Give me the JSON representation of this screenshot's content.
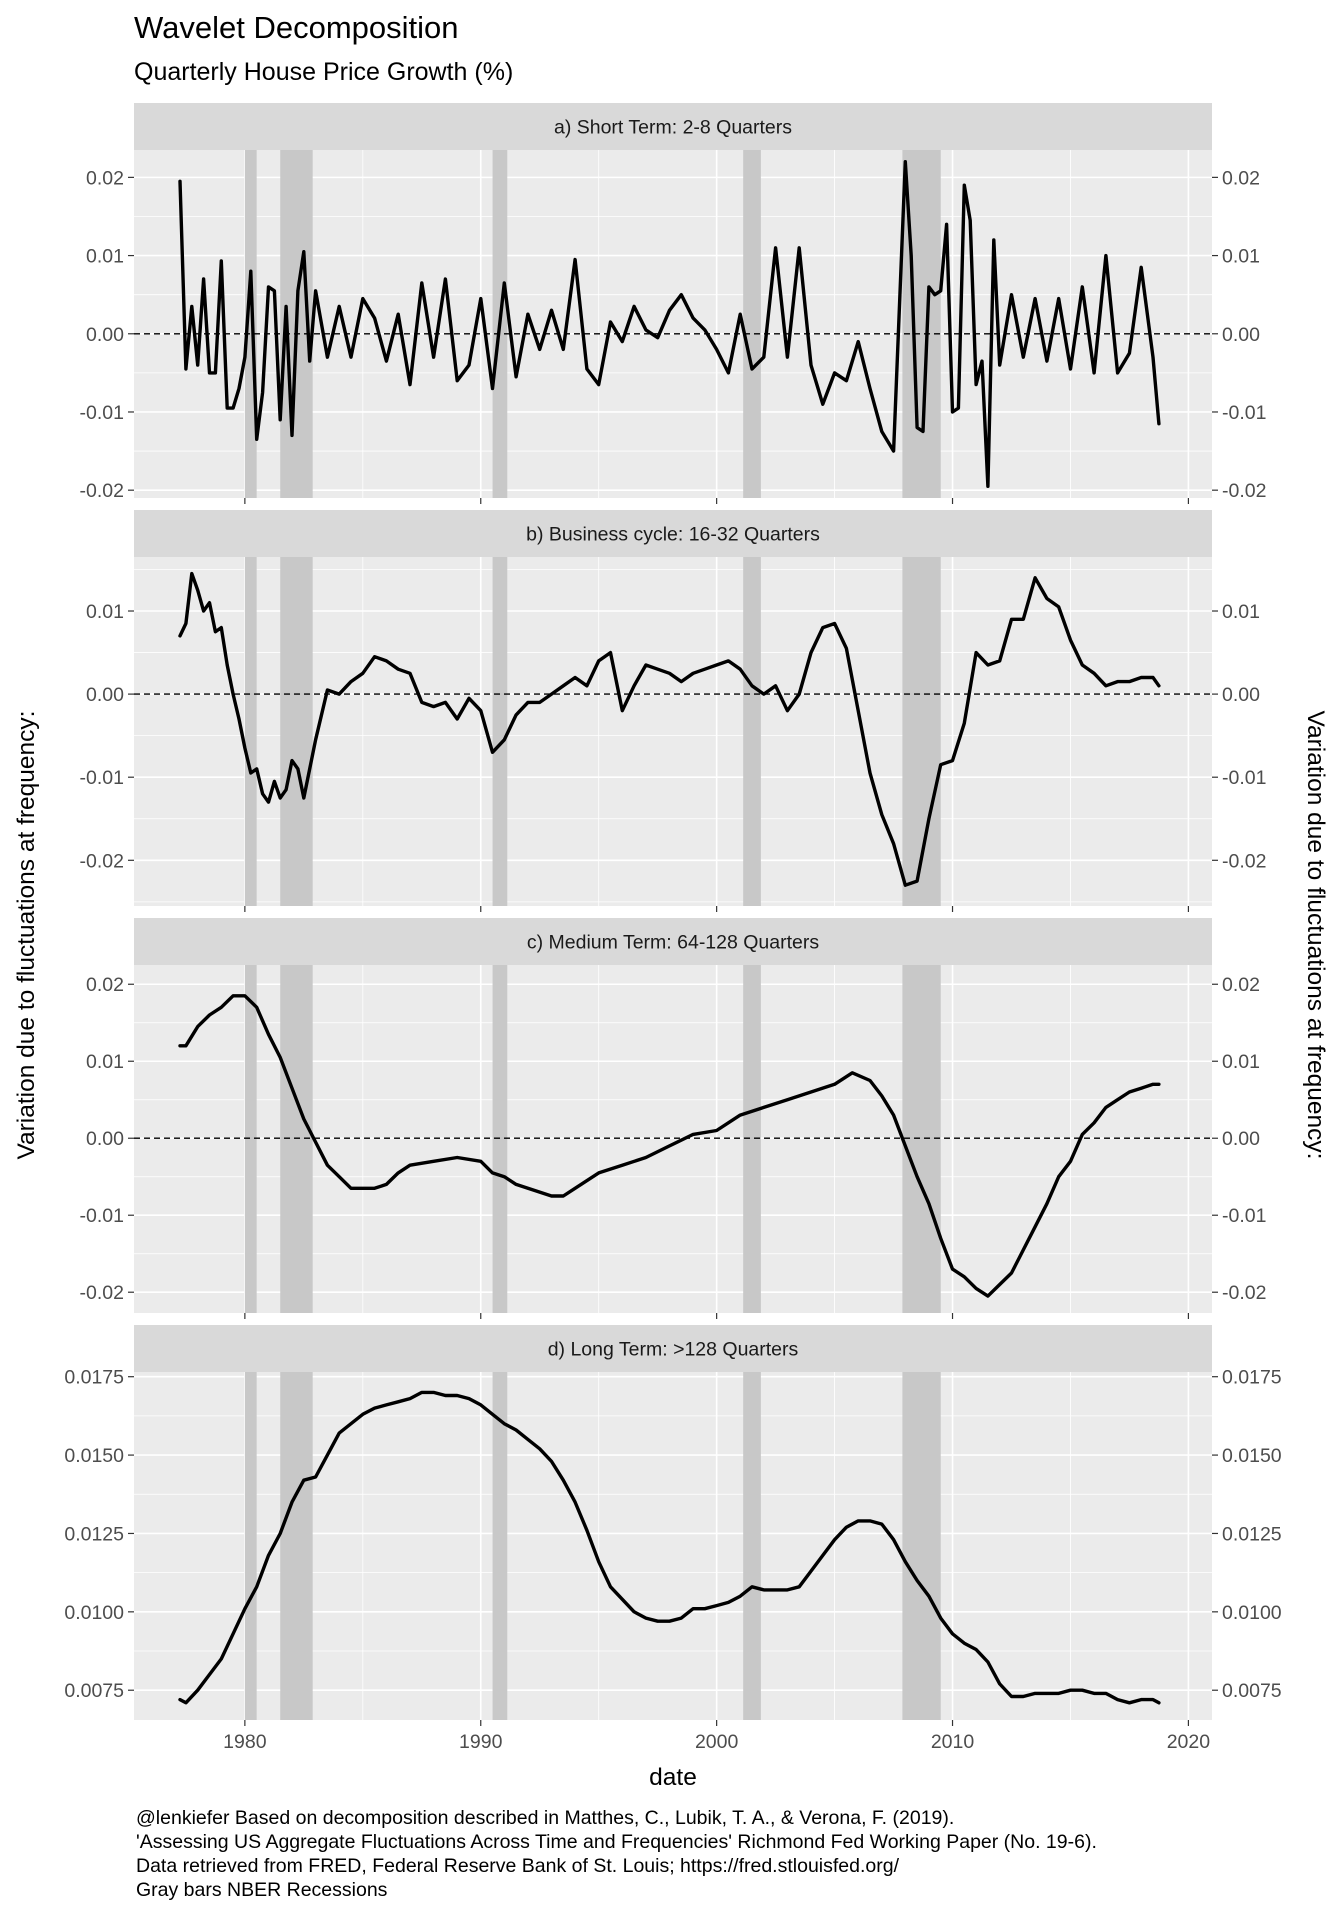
{
  "title": "Wavelet Decomposition",
  "subtitle": "Quarterly House Price Growth (%)",
  "caption": [
    "@lenkiefer Based on decomposition described in Matthes, C., Lubik, T. A., & Verona, F. (2019).",
    "'Assessing US Aggregate Fluctuations Across Time and Frequencies' Richmond Fed Working Paper (No. 19-6).",
    "Data retrieved from FRED, Federal Reserve Bank of St. Louis; https://fred.stlouisfed.org/",
    "Gray bars NBER Recessions"
  ],
  "colors": {
    "panel_background": "#ebebeb",
    "grid": "#ffffff",
    "strip_background": "#d9d9d9",
    "recession_bar": "#c8c8c8",
    "line": "#000000"
  },
  "chart_data": {
    "type": "line",
    "xlabel": "date",
    "ylabel": "Variation due to fluctuations at frequency:",
    "xlim": [
      1975.3,
      2021.0
    ],
    "x_ticks": [
      1980,
      1990,
      2000,
      2010,
      2020
    ],
    "x_tick_labels": [
      "1980",
      "1990",
      "2000",
      "2010",
      "2020"
    ],
    "recessions": [
      [
        1980.0,
        1980.5
      ],
      [
        1981.5,
        1982.875
      ],
      [
        1990.5,
        1991.125
      ],
      [
        2001.125,
        2001.875
      ],
      [
        2007.875,
        2009.5
      ]
    ],
    "reference_line": 0,
    "panels": [
      {
        "title": "a) Short Term: 2-8 Quarters",
        "ylim": [
          -0.021,
          0.0235
        ],
        "y_ticks": [
          -0.02,
          -0.01,
          0.0,
          0.01,
          0.02
        ],
        "y_tick_labels": [
          "-0.02",
          "-0.01",
          "0.00",
          "0.01",
          "0.02"
        ],
        "zero_line": true,
        "x": [
          1977.25,
          1977.5,
          1977.75,
          1978.0,
          1978.25,
          1978.5,
          1978.75,
          1979.0,
          1979.25,
          1979.5,
          1979.75,
          1980.0,
          1980.25,
          1980.5,
          1980.75,
          1981.0,
          1981.25,
          1981.5,
          1981.75,
          1982.0,
          1982.25,
          1982.5,
          1982.75,
          1983.0,
          1983.5,
          1984.0,
          1984.5,
          1985.0,
          1985.5,
          1986.0,
          1986.5,
          1987.0,
          1987.5,
          1988.0,
          1988.5,
          1989.0,
          1989.5,
          1990.0,
          1990.5,
          1991.0,
          1991.5,
          1992.0,
          1992.5,
          1993.0,
          1993.5,
          1994.0,
          1994.5,
          1995.0,
          1995.5,
          1996.0,
          1996.5,
          1997.0,
          1997.5,
          1998.0,
          1998.5,
          1999.0,
          1999.5,
          2000.0,
          2000.5,
          2001.0,
          2001.5,
          2002.0,
          2002.5,
          2003.0,
          2003.5,
          2004.0,
          2004.5,
          2005.0,
          2005.5,
          2006.0,
          2006.5,
          2007.0,
          2007.5,
          2008.0,
          2008.25,
          2008.5,
          2008.75,
          2009.0,
          2009.25,
          2009.5,
          2009.75,
          2010.0,
          2010.25,
          2010.5,
          2010.75,
          2011.0,
          2011.25,
          2011.5,
          2011.75,
          2012.0,
          2012.5,
          2013.0,
          2013.5,
          2014.0,
          2014.5,
          2015.0,
          2015.5,
          2016.0,
          2016.5,
          2017.0,
          2017.5,
          2018.0,
          2018.5,
          2018.75
        ],
        "y": [
          0.0195,
          -0.0045,
          0.0035,
          -0.004,
          0.007,
          -0.005,
          -0.005,
          0.0093,
          -0.0095,
          -0.0095,
          -0.007,
          -0.003,
          0.008,
          -0.0135,
          -0.0075,
          0.006,
          0.0055,
          -0.011,
          0.0035,
          -0.013,
          0.0055,
          0.0105,
          -0.0035,
          0.0055,
          -0.003,
          0.0035,
          -0.003,
          0.0045,
          0.002,
          -0.0035,
          0.0025,
          -0.0065,
          0.0065,
          -0.003,
          0.007,
          -0.006,
          -0.004,
          0.0045,
          -0.007,
          0.0065,
          -0.0055,
          0.0025,
          -0.002,
          0.003,
          -0.002,
          0.0095,
          -0.0045,
          -0.0065,
          0.0015,
          -0.001,
          0.0035,
          0.0005,
          -0.0005,
          0.003,
          0.005,
          0.002,
          0.0005,
          -0.002,
          -0.005,
          0.0025,
          -0.0045,
          -0.003,
          0.011,
          -0.003,
          0.011,
          -0.004,
          -0.009,
          -0.005,
          -0.006,
          -0.001,
          -0.007,
          -0.0125,
          -0.015,
          0.022,
          0.01,
          -0.012,
          -0.0125,
          0.006,
          0.005,
          0.0055,
          0.014,
          -0.01,
          -0.0095,
          0.019,
          0.0145,
          -0.0065,
          -0.0035,
          -0.0195,
          0.012,
          -0.004,
          0.005,
          -0.003,
          0.0045,
          -0.0035,
          0.0045,
          -0.0045,
          0.006,
          -0.005,
          0.01,
          -0.005,
          -0.0025,
          0.0085,
          -0.003,
          -0.0115
        ]
      },
      {
        "title": "b) Business cycle: 16-32 Quarters",
        "ylim": [
          -0.0255,
          0.0165
        ],
        "y_ticks": [
          -0.02,
          -0.01,
          0.0,
          0.01
        ],
        "y_tick_labels": [
          "-0.02",
          "-0.01",
          "0.00",
          "0.01"
        ],
        "zero_line": true,
        "x": [
          1977.25,
          1977.5,
          1977.75,
          1978.0,
          1978.25,
          1978.5,
          1978.75,
          1979.0,
          1979.25,
          1979.5,
          1979.75,
          1980.0,
          1980.25,
          1980.5,
          1980.75,
          1981.0,
          1981.25,
          1981.5,
          1981.75,
          1982.0,
          1982.25,
          1982.5,
          1982.75,
          1983.0,
          1983.5,
          1984.0,
          1984.5,
          1985.0,
          1985.5,
          1986.0,
          1986.5,
          1987.0,
          1987.5,
          1988.0,
          1988.5,
          1989.0,
          1989.5,
          1990.0,
          1990.5,
          1991.0,
          1991.5,
          1992.0,
          1992.5,
          1993.0,
          1993.5,
          1994.0,
          1994.5,
          1995.0,
          1995.5,
          1996.0,
          1996.5,
          1997.0,
          1997.5,
          1998.0,
          1998.5,
          1999.0,
          1999.5,
          2000.0,
          2000.5,
          2001.0,
          2001.5,
          2002.0,
          2002.5,
          2003.0,
          2003.5,
          2004.0,
          2004.5,
          2005.0,
          2005.5,
          2006.0,
          2006.5,
          2007.0,
          2007.5,
          2008.0,
          2008.5,
          2009.0,
          2009.5,
          2010.0,
          2010.5,
          2011.0,
          2011.5,
          2012.0,
          2012.5,
          2013.0,
          2013.5,
          2014.0,
          2014.5,
          2015.0,
          2015.5,
          2016.0,
          2016.5,
          2017.0,
          2017.5,
          2018.0,
          2018.5,
          2018.75
        ],
        "y": [
          0.007,
          0.0085,
          0.0145,
          0.0125,
          0.01,
          0.011,
          0.0075,
          0.008,
          0.0035,
          0.0,
          -0.003,
          -0.0065,
          -0.0095,
          -0.009,
          -0.012,
          -0.013,
          -0.0105,
          -0.0125,
          -0.0115,
          -0.008,
          -0.009,
          -0.0125,
          -0.009,
          -0.0055,
          0.0005,
          0.0,
          0.0015,
          0.0025,
          0.0045,
          0.004,
          0.003,
          0.0025,
          -0.001,
          -0.0015,
          -0.001,
          -0.003,
          -0.0005,
          -0.002,
          -0.007,
          -0.0055,
          -0.0025,
          -0.001,
          -0.001,
          0.0,
          0.001,
          0.002,
          0.001,
          0.004,
          0.005,
          -0.002,
          0.001,
          0.0035,
          0.003,
          0.0025,
          0.0015,
          0.0025,
          0.003,
          0.0035,
          0.004,
          0.003,
          0.001,
          0.0,
          0.001,
          -0.002,
          0.0,
          0.005,
          0.008,
          0.0085,
          0.0055,
          -0.002,
          -0.0095,
          -0.0145,
          -0.018,
          -0.023,
          -0.0225,
          -0.015,
          -0.0085,
          -0.008,
          -0.0035,
          0.005,
          0.0035,
          0.004,
          0.009,
          0.009,
          0.014,
          0.0115,
          0.0105,
          0.0065,
          0.0035,
          0.0025,
          0.001,
          0.0015,
          0.0015,
          0.002,
          0.002,
          0.001
        ]
      },
      {
        "title": "c) Medium Term: 64-128 Quarters",
        "ylim": [
          -0.0227,
          0.0225
        ],
        "y_ticks": [
          -0.02,
          -0.01,
          0.0,
          0.01,
          0.02
        ],
        "y_tick_labels": [
          "-0.02",
          "-0.01",
          "0.00",
          "0.01",
          "0.02"
        ],
        "zero_line": true,
        "x": [
          1977.25,
          1977.5,
          1978.0,
          1978.5,
          1979.0,
          1979.5,
          1980.0,
          1980.5,
          1981.0,
          1981.5,
          1982.0,
          1982.5,
          1983.0,
          1983.5,
          1984.0,
          1984.5,
          1985.0,
          1985.5,
          1986.0,
          1986.5,
          1987.0,
          1988.0,
          1989.0,
          1990.0,
          1990.5,
          1991.0,
          1991.5,
          1992.0,
          1993.0,
          1993.5,
          1994.0,
          1995.0,
          1996.0,
          1997.0,
          1998.0,
          1999.0,
          2000.0,
          2001.0,
          2002.0,
          2003.0,
          2004.0,
          2005.0,
          2005.75,
          2006.5,
          2007.0,
          2007.5,
          2008.0,
          2008.5,
          2009.0,
          2009.5,
          2010.0,
          2010.5,
          2011.0,
          2011.5,
          2012.0,
          2012.5,
          2013.0,
          2013.5,
          2014.0,
          2014.5,
          2015.0,
          2015.5,
          2016.0,
          2016.5,
          2017.0,
          2017.5,
          2018.0,
          2018.5,
          2018.75
        ],
        "y": [
          0.012,
          0.012,
          0.0145,
          0.016,
          0.017,
          0.0185,
          0.0185,
          0.017,
          0.0135,
          0.0105,
          0.0065,
          0.0025,
          -0.0005,
          -0.0035,
          -0.005,
          -0.0065,
          -0.0065,
          -0.0065,
          -0.006,
          -0.0045,
          -0.0035,
          -0.003,
          -0.0025,
          -0.003,
          -0.0045,
          -0.005,
          -0.006,
          -0.0065,
          -0.0075,
          -0.0075,
          -0.0065,
          -0.0045,
          -0.0035,
          -0.0025,
          -0.001,
          0.0005,
          0.001,
          0.003,
          0.004,
          0.005,
          0.006,
          0.007,
          0.0085,
          0.0075,
          0.0055,
          0.003,
          -0.001,
          -0.005,
          -0.0085,
          -0.013,
          -0.017,
          -0.018,
          -0.0195,
          -0.0205,
          -0.019,
          -0.0175,
          -0.0145,
          -0.0115,
          -0.0085,
          -0.005,
          -0.003,
          0.0005,
          0.002,
          0.004,
          0.005,
          0.006,
          0.0065,
          0.007,
          0.007
        ]
      },
      {
        "title": "d) Long Term: >128 Quarters",
        "ylim": [
          0.00655,
          0.01765
        ],
        "y_ticks": [
          0.0075,
          0.01,
          0.0125,
          0.015,
          0.0175
        ],
        "y_tick_labels": [
          "0.0075",
          "0.0100",
          "0.0125",
          "0.0150",
          "0.0175"
        ],
        "zero_line": false,
        "x": [
          1977.25,
          1977.5,
          1978.0,
          1978.5,
          1979.0,
          1979.5,
          1980.0,
          1980.5,
          1981.0,
          1981.5,
          1982.0,
          1982.5,
          1983.0,
          1983.5,
          1984.0,
          1984.5,
          1985.0,
          1985.5,
          1986.0,
          1986.5,
          1987.0,
          1987.5,
          1988.0,
          1988.5,
          1989.0,
          1989.5,
          1990.0,
          1990.5,
          1991.0,
          1991.5,
          1992.0,
          1992.5,
          1993.0,
          1993.5,
          1994.0,
          1994.5,
          1995.0,
          1995.5,
          1996.0,
          1996.5,
          1997.0,
          1997.5,
          1998.0,
          1998.5,
          1999.0,
          1999.5,
          2000.0,
          2000.5,
          2001.0,
          2001.5,
          2002.0,
          2002.5,
          2003.0,
          2003.5,
          2004.0,
          2004.5,
          2005.0,
          2005.5,
          2006.0,
          2006.5,
          2007.0,
          2007.5,
          2008.0,
          2008.5,
          2009.0,
          2009.5,
          2010.0,
          2010.5,
          2011.0,
          2011.5,
          2012.0,
          2012.5,
          2013.0,
          2013.5,
          2014.0,
          2014.5,
          2015.0,
          2015.5,
          2016.0,
          2016.5,
          2017.0,
          2017.5,
          2018.0,
          2018.5,
          2018.75
        ],
        "y": [
          0.0072,
          0.0071,
          0.0075,
          0.008,
          0.0085,
          0.0093,
          0.0101,
          0.0108,
          0.0118,
          0.0125,
          0.0135,
          0.0142,
          0.0143,
          0.015,
          0.0157,
          0.016,
          0.0163,
          0.0165,
          0.0166,
          0.0167,
          0.0168,
          0.017,
          0.017,
          0.0169,
          0.0169,
          0.0168,
          0.0166,
          0.0163,
          0.016,
          0.0158,
          0.0155,
          0.0152,
          0.0148,
          0.0142,
          0.0135,
          0.0126,
          0.0116,
          0.0108,
          0.0104,
          0.01,
          0.0098,
          0.0097,
          0.0097,
          0.0098,
          0.0101,
          0.0101,
          0.0102,
          0.0103,
          0.0105,
          0.0108,
          0.0107,
          0.0107,
          0.0107,
          0.0108,
          0.0113,
          0.0118,
          0.0123,
          0.0127,
          0.0129,
          0.0129,
          0.0128,
          0.0123,
          0.0116,
          0.011,
          0.0105,
          0.0098,
          0.0093,
          0.009,
          0.0088,
          0.0084,
          0.0077,
          0.0073,
          0.0073,
          0.0074,
          0.0074,
          0.0074,
          0.0075,
          0.0075,
          0.0074,
          0.0074,
          0.0072,
          0.0071,
          0.0072,
          0.0072,
          0.0071
        ]
      }
    ]
  }
}
